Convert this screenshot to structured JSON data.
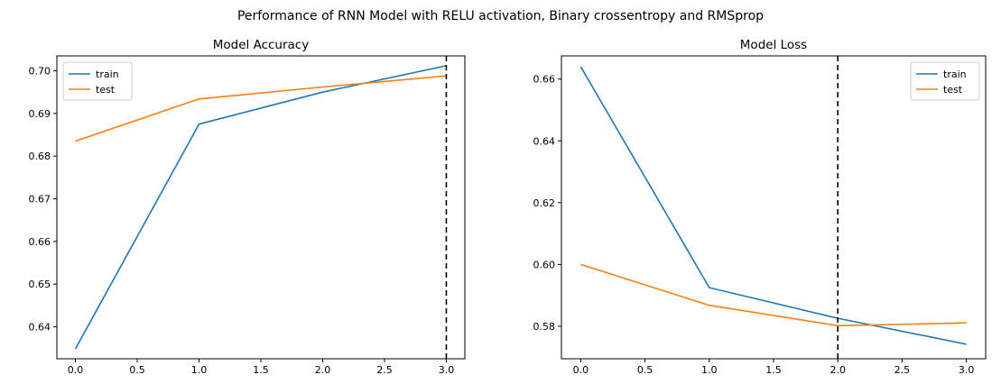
{
  "figure": {
    "title": "Performance of RNN Model with RELU activation, Binary crossentropy and RMSprop"
  },
  "colors": {
    "train": "#1f77b4",
    "test": "#ff7f0e",
    "marker": "#000000"
  },
  "chart_data": [
    {
      "type": "line",
      "title": "Model Accuracy",
      "xlabel": "",
      "ylabel": "",
      "x": [
        0,
        1,
        2,
        3
      ],
      "xlim": [
        -0.15,
        3.15
      ],
      "ylim": [
        0.6325,
        0.7035
      ],
      "xticks": [
        "0.0",
        "0.5",
        "1.0",
        "1.5",
        "2.0",
        "2.5",
        "3.0"
      ],
      "xtick_values": [
        0,
        0.5,
        1,
        1.5,
        2,
        2.5,
        3
      ],
      "yticks": [
        "0.64",
        "0.65",
        "0.66",
        "0.67",
        "0.68",
        "0.69",
        "0.70"
      ],
      "ytick_values": [
        0.64,
        0.65,
        0.66,
        0.67,
        0.68,
        0.69,
        0.7
      ],
      "series": [
        {
          "name": "train",
          "values": [
            0.6348,
            0.6875,
            0.695,
            0.7012
          ]
        },
        {
          "name": "test",
          "values": [
            0.6835,
            0.6934,
            0.6962,
            0.6988
          ]
        }
      ],
      "vline": 3,
      "grid": false,
      "legend": "upper-left"
    },
    {
      "type": "line",
      "title": "Model Loss",
      "xlabel": "",
      "ylabel": "",
      "x": [
        0,
        1,
        2,
        3
      ],
      "xlim": [
        -0.15,
        3.15
      ],
      "ylim": [
        0.5695,
        0.6675
      ],
      "xticks": [
        "0.0",
        "0.5",
        "1.0",
        "1.5",
        "2.0",
        "2.5",
        "3.0"
      ],
      "xtick_values": [
        0,
        0.5,
        1,
        1.5,
        2,
        2.5,
        3
      ],
      "yticks": [
        "0.58",
        "0.60",
        "0.62",
        "0.64",
        "0.66"
      ],
      "ytick_values": [
        0.58,
        0.6,
        0.62,
        0.64,
        0.66
      ],
      "series": [
        {
          "name": "train",
          "values": [
            0.664,
            0.5925,
            0.5826,
            0.5742
          ]
        },
        {
          "name": "test",
          "values": [
            0.6,
            0.5868,
            0.5802,
            0.5811
          ]
        }
      ],
      "vline": 2,
      "grid": false,
      "legend": "upper-right"
    }
  ]
}
